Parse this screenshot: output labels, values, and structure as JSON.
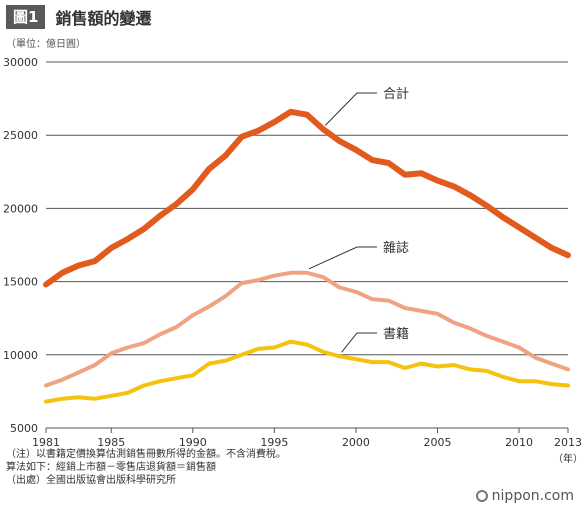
{
  "header": {
    "tag": "圖1",
    "title": "銷售額的變遷"
  },
  "unit_label": "（單位：億日圓）",
  "notes": [
    "（注）以書籍定價換算估測銷售冊數所得的金額。不含消費稅。",
    "算法如下：經銷上市額－零售店退貨額＝銷售額",
    "（出處）全國出版協會出版科學研究所"
  ],
  "brand": {
    "text": "nippon.com",
    "icon": "nippon-logo-icon"
  },
  "colors": {
    "total": "#e15a1e",
    "magazines": "#f0a383",
    "books": "#f5c20d",
    "grid": "#555555"
  },
  "chart_data": {
    "type": "line",
    "title": "銷售額的變遷",
    "xlabel": "（年）",
    "ylabel": "（單位：億日圓）",
    "x": [
      1981,
      1982,
      1983,
      1984,
      1985,
      1986,
      1987,
      1988,
      1989,
      1990,
      1991,
      1992,
      1993,
      1994,
      1995,
      1996,
      1997,
      1998,
      1999,
      2000,
      2001,
      2002,
      2003,
      2004,
      2005,
      2006,
      2007,
      2008,
      2009,
      2010,
      2011,
      2012,
      2013
    ],
    "x_ticks": [
      1981,
      1985,
      1990,
      1995,
      2000,
      2005,
      2010,
      2013
    ],
    "x_tick_labels": [
      "1981",
      "1985",
      "1990",
      "1995",
      "2000",
      "2005",
      "2010",
      "2013"
    ],
    "y_ticks": [
      5000,
      10000,
      15000,
      20000,
      25000,
      30000
    ],
    "y_tick_labels": [
      "5000",
      "10000",
      "15000",
      "20000",
      "25000",
      "30000"
    ],
    "xlim": [
      1981,
      2013
    ],
    "ylim": [
      5000,
      30000
    ],
    "grid": "horizontal",
    "series": [
      {
        "name": "合計",
        "key": "total",
        "values": [
          14800,
          15600,
          16100,
          16400,
          17300,
          17900,
          18600,
          19500,
          20300,
          21300,
          22700,
          23600,
          24900,
          25300,
          25900,
          26600,
          26400,
          25400,
          24600,
          24000,
          23300,
          23100,
          22300,
          22400,
          21900,
          21500,
          20900,
          20200,
          19400,
          18700,
          18000,
          17300,
          16800
        ]
      },
      {
        "name": "雜誌",
        "key": "magazines",
        "values": [
          7900,
          8300,
          8800,
          9300,
          10100,
          10500,
          10800,
          11400,
          11900,
          12700,
          13300,
          14000,
          14900,
          15100,
          15400,
          15600,
          15600,
          15300,
          14600,
          14300,
          13800,
          13700,
          13200,
          13000,
          12800,
          12200,
          11800,
          11300,
          10900,
          10500,
          9800,
          9400,
          9000
        ]
      },
      {
        "name": "書籍",
        "key": "books",
        "values": [
          6800,
          7000,
          7100,
          7000,
          7200,
          7400,
          7900,
          8200,
          8400,
          8600,
          9400,
          9600,
          10000,
          10400,
          10500,
          10900,
          10700,
          10200,
          9900,
          9700,
          9500,
          9500,
          9100,
          9400,
          9200,
          9300,
          9000,
          8900,
          8500,
          8200,
          8200,
          8000,
          7900
        ]
      }
    ]
  }
}
